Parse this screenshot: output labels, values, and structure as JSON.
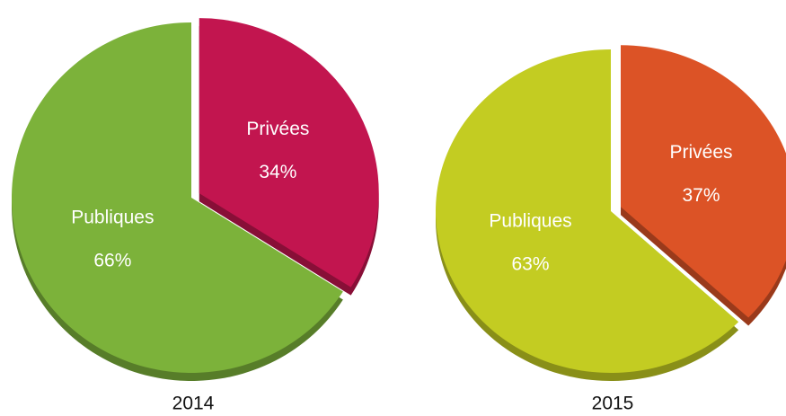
{
  "chart_data": [
    {
      "type": "pie",
      "title": "2014",
      "categories": [
        "Privées",
        "Publiques"
      ],
      "values": [
        34,
        66
      ],
      "value_labels": [
        "34%",
        "66%"
      ],
      "colors": [
        "#c2154f",
        "#7cb23a"
      ]
    },
    {
      "type": "pie",
      "title": "2015",
      "categories": [
        "Privées",
        "Publiques"
      ],
      "values": [
        37,
        63
      ],
      "value_labels": [
        "37%",
        "63%"
      ],
      "colors": [
        "#dc5326",
        "#c3cc22"
      ]
    }
  ]
}
